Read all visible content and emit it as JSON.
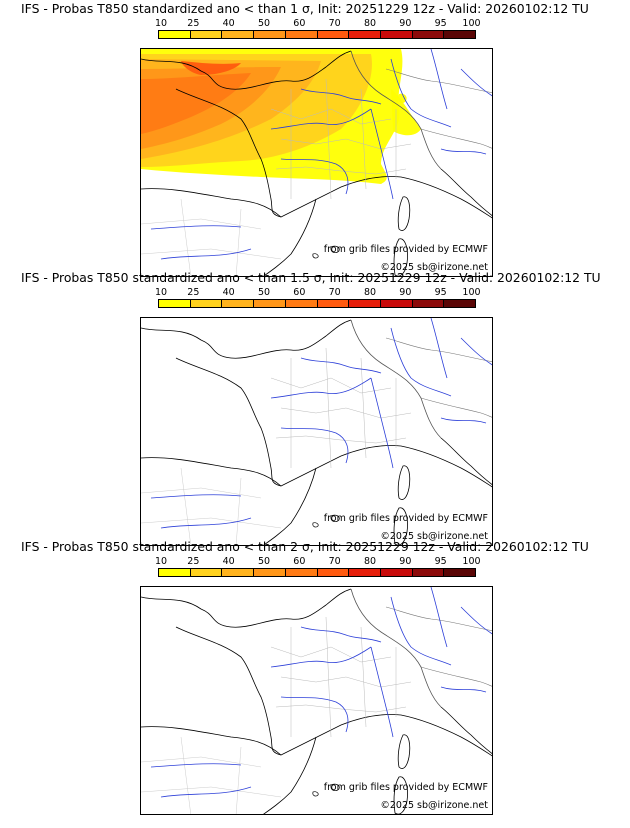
{
  "colors": {
    "prob": [
      "#ffff00",
      "#ffd21e",
      "#ffb31e",
      "#ff9619",
      "#ff7a14",
      "#ff5a0f",
      "#e61e0a",
      "#c80a0a",
      "#8c0a0a",
      "#5a0505"
    ]
  },
  "legend": {
    "ticks": [
      "10",
      "25",
      "40",
      "50",
      "60",
      "70",
      "80",
      "90",
      "95",
      "100"
    ]
  },
  "panels": [
    {
      "title": "IFS - Probas T850  standardized ano < than 1 σ, Init: 20251229 12z - Valid: 20260102:12 TU",
      "credit_line1": "from grib files provided by ECMWF",
      "credit_line2": "©2025 sb@irizone.net"
    },
    {
      "title": "IFS - Probas T850  standardized ano < than 1.5 σ, Init: 20251229 12z - Valid: 20260102:12 TU",
      "credit_line1": "from grib files provided by ECMWF",
      "credit_line2": "©2025 sb@irizone.net"
    },
    {
      "title": "IFS - Probas T850  standardized ano < than 2 σ, Init: 20251229 12z - Valid: 20260102:12 TU",
      "credit_line1": "from grib files provided by ECMWF",
      "credit_line2": "©2025 sb@irizone.net"
    }
  ]
}
